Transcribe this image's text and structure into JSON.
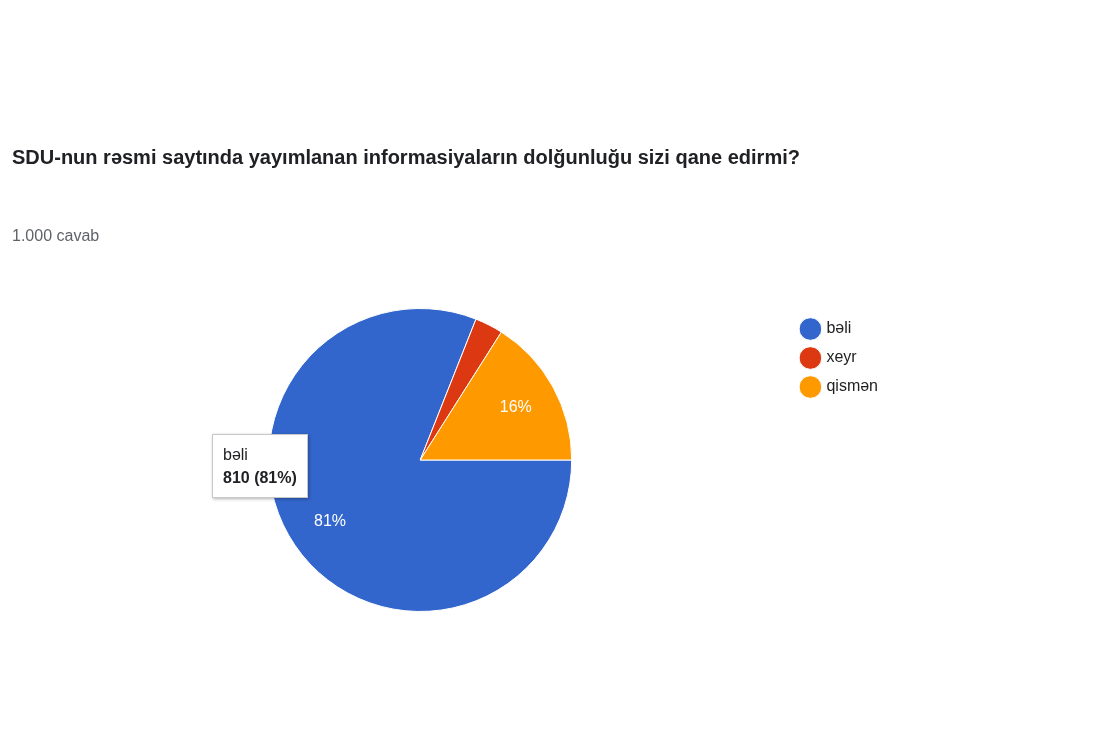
{
  "chart_data": {
    "type": "pie",
    "title": "SDU-nun rəsmi saytında yayımlanan informasiyaların dolğunluğu sizi qane edirmi?",
    "subtitle": "1.000 cavab",
    "categories": [
      "bəli",
      "xeyr",
      "qismən"
    ],
    "values": [
      81,
      3,
      16
    ],
    "colors": [
      "#3366cc",
      "#dc3912",
      "#ff9900"
    ],
    "value_labels": [
      "81%",
      null,
      "16%"
    ],
    "legend": "right",
    "annotations": [
      "bəli",
      "810 (81%)"
    ]
  }
}
